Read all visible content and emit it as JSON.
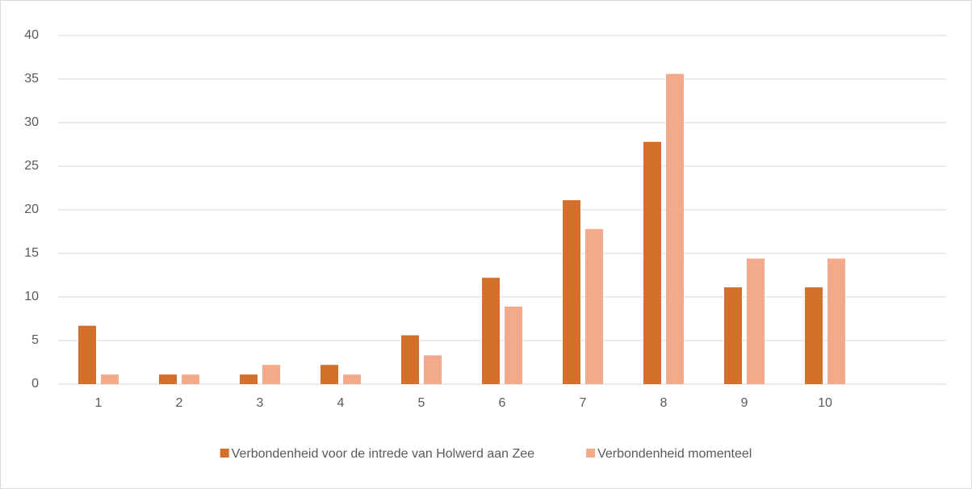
{
  "chart_data": {
    "type": "bar",
    "categories": [
      "1",
      "2",
      "3",
      "4",
      "5",
      "6",
      "7",
      "8",
      "9",
      "10",
      null
    ],
    "series": [
      {
        "name": "Verbondenheid voor de intrede van Holwerd aan Zee",
        "color": "#d26f2b",
        "values": [
          6.7,
          1.1,
          1.1,
          2.2,
          5.6,
          12.2,
          21.1,
          27.8,
          11.1,
          11.1,
          null
        ]
      },
      {
        "name": "Verbondenheid momenteel",
        "color": "#f2aa8b",
        "values": [
          1.1,
          1.1,
          2.2,
          1.1,
          3.3,
          8.9,
          17.8,
          35.6,
          14.4,
          14.4,
          null
        ]
      }
    ],
    "ylim": [
      0,
      40
    ],
    "yticks": [
      0,
      5,
      10,
      15,
      20,
      25,
      30,
      35,
      40
    ],
    "grid": true,
    "legend": "bottom"
  }
}
